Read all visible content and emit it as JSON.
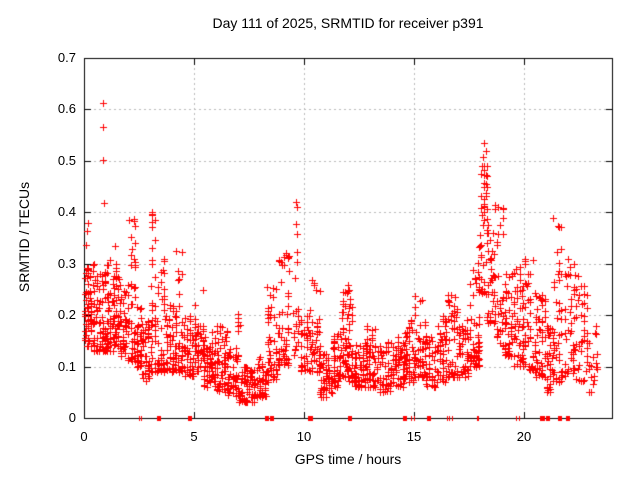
{
  "chart_data": {
    "type": "scatter",
    "title": "Day 111 of 2025, SRMTID for receiver p391",
    "xlabel": "GPS time / hours",
    "ylabel": "SRMTID / TECUs",
    "xlim": [
      0,
      24
    ],
    "ylim": [
      0,
      0.7
    ],
    "xticks": [
      0,
      5,
      10,
      15,
      20
    ],
    "xtick_labels": [
      "0",
      "5",
      "10",
      "15",
      "20"
    ],
    "yticks": [
      0,
      0.1,
      0.2,
      0.3,
      0.4,
      0.5,
      0.6,
      0.7
    ],
    "ytick_labels": [
      "0",
      "0.1",
      "0.2",
      "0.3",
      "0.4",
      "0.5",
      "0.6",
      "0.7"
    ],
    "grid": "dashed-major",
    "legend": "none",
    "marker": "plus",
    "marker_size_px": 7,
    "marker_color": "#ff0000",
    "grid_color": "#b9b9b9",
    "axis_color": "#000000",
    "background_color": "#ffffff",
    "seed": 20250421,
    "bands_format": [
      "x_start_h",
      "x_end_h",
      "y_min_TECU",
      "y_max_TECU",
      "n_points",
      "skew_toward_min"
    ],
    "bands": [
      [
        0.0,
        0.25,
        0.15,
        0.38,
        32,
        1.6
      ],
      [
        0.1,
        0.5,
        0.14,
        0.3,
        42,
        1.5
      ],
      [
        0.4,
        0.9,
        0.13,
        0.28,
        52,
        1.6
      ],
      [
        0.9,
        1.35,
        0.13,
        0.31,
        56,
        1.6
      ],
      [
        1.3,
        1.6,
        0.14,
        0.34,
        40,
        1.4
      ],
      [
        1.6,
        1.95,
        0.12,
        0.26,
        36,
        1.5
      ],
      [
        1.95,
        2.35,
        0.11,
        0.39,
        45,
        1.8
      ],
      [
        2.35,
        2.65,
        0.1,
        0.22,
        32,
        1.5
      ],
      [
        2.6,
        3.0,
        0.07,
        0.19,
        40,
        1.5
      ],
      [
        3.0,
        3.3,
        0.09,
        0.41,
        40,
        2.0
      ],
      [
        3.3,
        3.7,
        0.09,
        0.31,
        42,
        1.8
      ],
      [
        3.7,
        4.1,
        0.09,
        0.22,
        40,
        1.5
      ],
      [
        4.1,
        4.5,
        0.09,
        0.34,
        42,
        2.0
      ],
      [
        4.5,
        5.0,
        0.08,
        0.2,
        46,
        1.5
      ],
      [
        5.0,
        5.45,
        0.09,
        0.25,
        42,
        1.6
      ],
      [
        5.4,
        6.0,
        0.06,
        0.17,
        62,
        1.5
      ],
      [
        6.0,
        6.55,
        0.05,
        0.18,
        56,
        1.6
      ],
      [
        6.5,
        7.05,
        0.04,
        0.14,
        50,
        1.4
      ],
      [
        6.95,
        7.15,
        0.14,
        0.24,
        6,
        1.0
      ],
      [
        7.0,
        7.8,
        0.03,
        0.1,
        72,
        1.3
      ],
      [
        7.8,
        8.3,
        0.04,
        0.12,
        46,
        1.3
      ],
      [
        8.3,
        8.8,
        0.07,
        0.26,
        46,
        1.6
      ],
      [
        8.8,
        9.35,
        0.1,
        0.33,
        52,
        1.6
      ],
      [
        9.45,
        9.8,
        0.12,
        0.22,
        15,
        1.3
      ],
      [
        9.8,
        10.2,
        0.09,
        0.2,
        32,
        1.4
      ],
      [
        10.2,
        10.75,
        0.09,
        0.27,
        46,
        1.7
      ],
      [
        10.7,
        11.3,
        0.04,
        0.13,
        56,
        1.3
      ],
      [
        11.3,
        11.7,
        0.06,
        0.17,
        40,
        1.4
      ],
      [
        11.7,
        12.05,
        0.08,
        0.26,
        40,
        1.7
      ],
      [
        12.0,
        12.35,
        0.07,
        0.26,
        36,
        1.7
      ],
      [
        12.3,
        12.85,
        0.06,
        0.15,
        46,
        1.4
      ],
      [
        12.8,
        13.4,
        0.06,
        0.18,
        52,
        1.5
      ],
      [
        13.4,
        14.0,
        0.05,
        0.15,
        46,
        1.4
      ],
      [
        14.0,
        14.55,
        0.06,
        0.16,
        42,
        1.4
      ],
      [
        14.5,
        15.05,
        0.07,
        0.2,
        48,
        1.5
      ],
      [
        15.0,
        15.55,
        0.08,
        0.24,
        48,
        1.6
      ],
      [
        15.5,
        16.0,
        0.06,
        0.16,
        42,
        1.4
      ],
      [
        16.0,
        16.5,
        0.07,
        0.2,
        44,
        1.5
      ],
      [
        16.5,
        17.0,
        0.08,
        0.24,
        50,
        1.6
      ],
      [
        17.0,
        17.5,
        0.08,
        0.2,
        44,
        1.5
      ],
      [
        17.5,
        18.0,
        0.1,
        0.3,
        54,
        1.6
      ],
      [
        17.9,
        18.05,
        0.3,
        0.36,
        5,
        1.0
      ],
      [
        18.0,
        18.35,
        0.24,
        0.5,
        40,
        1.3
      ],
      [
        18.3,
        18.65,
        0.18,
        0.42,
        35,
        1.4
      ],
      [
        18.6,
        19.1,
        0.14,
        0.42,
        38,
        1.7
      ],
      [
        19.1,
        19.5,
        0.12,
        0.28,
        42,
        1.5
      ],
      [
        19.5,
        20.0,
        0.1,
        0.3,
        50,
        1.6
      ],
      [
        20.0,
        20.55,
        0.09,
        0.37,
        44,
        1.8
      ],
      [
        20.5,
        21.0,
        0.08,
        0.25,
        44,
        1.6
      ],
      [
        21.0,
        21.35,
        0.05,
        0.18,
        36,
        1.5
      ],
      [
        21.3,
        21.75,
        0.07,
        0.39,
        46,
        1.8
      ],
      [
        21.8,
        22.3,
        0.08,
        0.31,
        40,
        1.6
      ],
      [
        22.3,
        22.9,
        0.07,
        0.28,
        40,
        1.6
      ],
      [
        22.9,
        23.35,
        0.05,
        0.18,
        20,
        1.5
      ]
    ],
    "outliers": [
      [
        0.14,
        0.363
      ],
      [
        0.86,
        0.613
      ],
      [
        0.87,
        0.565
      ],
      [
        0.88,
        0.502
      ],
      [
        0.9,
        0.419
      ],
      [
        9.65,
        0.42
      ],
      [
        9.67,
        0.41
      ],
      [
        9.65,
        0.378
      ],
      [
        9.7,
        0.357
      ],
      [
        9.68,
        0.323
      ],
      [
        9.66,
        0.303
      ],
      [
        9.6,
        0.272
      ],
      [
        18.2,
        0.535
      ],
      [
        18.25,
        0.52
      ],
      [
        18.15,
        0.508
      ],
      [
        18.3,
        0.49
      ]
    ],
    "baseline_marks_format": [
      "x_hours",
      "width_hours"
    ],
    "baseline_marks": [
      [
        2.5,
        0.05
      ],
      [
        2.62,
        0.05
      ],
      [
        3.4,
        0.18
      ],
      [
        4.8,
        0.18
      ],
      [
        8.32,
        0.2
      ],
      [
        8.56,
        0.2
      ],
      [
        10.3,
        0.24
      ],
      [
        12.1,
        0.2
      ],
      [
        14.6,
        0.2
      ],
      [
        14.9,
        0.05
      ],
      [
        15.02,
        0.05
      ],
      [
        15.7,
        0.18
      ],
      [
        16.5,
        0.05
      ],
      [
        16.62,
        0.05
      ],
      [
        16.74,
        0.05
      ],
      [
        17.9,
        0.1
      ],
      [
        19.68,
        0.05
      ],
      [
        19.78,
        0.05
      ],
      [
        20.82,
        0.24
      ],
      [
        21.1,
        0.2
      ],
      [
        21.65,
        0.2
      ],
      [
        22.0,
        0.16
      ]
    ]
  }
}
